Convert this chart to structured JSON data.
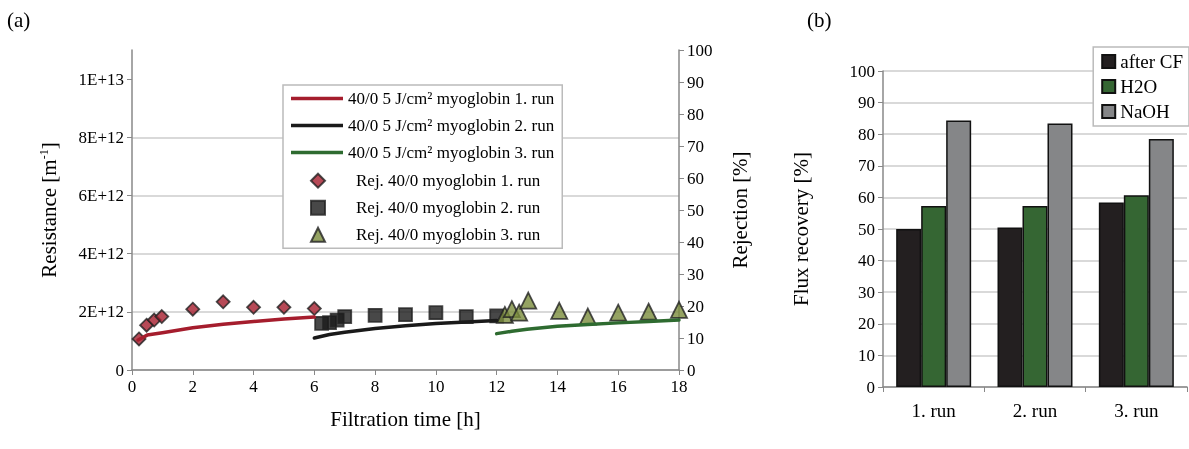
{
  "chart_data": [
    {
      "type": "line",
      "title": "(a)",
      "xlabel": "Filtration time [h]",
      "ylabel": "Resistance [m$^{-1}$]",
      "y2label": "Rejection [%]",
      "xlim": [
        0,
        18
      ],
      "xticks": [
        0,
        2,
        4,
        6,
        8,
        10,
        12,
        14,
        16,
        18
      ],
      "ylim": [
        0,
        11000000000000.0
      ],
      "yticks": [
        0,
        {
          "value": 2000000000000.0,
          "label": "2E+12"
        },
        {
          "value": 4000000000000.0,
          "label": "4E+12"
        },
        {
          "value": 6000000000000.0,
          "label": "6E+12"
        },
        {
          "value": 8000000000000.0,
          "label": "8E+12"
        },
        {
          "value": 10000000000000.0,
          "label": "1E+13"
        }
      ],
      "y2lim": [
        0,
        100
      ],
      "y2ticks": [
        0,
        10,
        20,
        30,
        40,
        50,
        60,
        70,
        80,
        90,
        100
      ],
      "grid": "y",
      "legend": "top right",
      "series": [
        {
          "name": "40/0 5 J/cm² myoglobin 1. run",
          "marker": "none",
          "color": "#a51d2d",
          "x": [
            0.2,
            0.5,
            1,
            2,
            3,
            4,
            5,
            6
          ],
          "values": [
            1030000000000.0,
            1200000000000.0,
            1280000000000.0,
            1450000000000.0,
            1570000000000.0,
            1670000000000.0,
            1750000000000.0,
            1820000000000.0
          ]
        },
        {
          "name": "40/0 5 J/cm² myoglobin 2. run",
          "marker": "none",
          "color": "#1a1a1a",
          "x": [
            6,
            6.5,
            7,
            8,
            9,
            10,
            11,
            12
          ],
          "values": [
            1100000000000.0,
            1220000000000.0,
            1300000000000.0,
            1430000000000.0,
            1520000000000.0,
            1600000000000.0,
            1650000000000.0,
            1700000000000.0
          ]
        },
        {
          "name": "40/0 5 J/cm² myoglobin 3. run",
          "marker": "none",
          "color": "#2e6b30",
          "x": [
            12,
            12.5,
            13,
            14,
            15,
            16,
            17,
            18
          ],
          "values": [
            1250000000000.0,
            1330000000000.0,
            1400000000000.0,
            1500000000000.0,
            1560000000000.0,
            1620000000000.0,
            1670000000000.0,
            1720000000000.0
          ]
        },
        {
          "name": "Rej. 40/0 myoglobin 1. run",
          "type": "scatter",
          "axis": "y2",
          "marker": "diamond",
          "color": "#a51d2d",
          "x": [
            0.23,
            0.48,
            0.73,
            0.98,
            2,
            3,
            4,
            5,
            6
          ],
          "values": [
            9.7,
            14,
            15.6,
            16.7,
            19,
            21.3,
            19.6,
            19.6,
            19.2
          ]
        },
        {
          "name": "Rej. 40/0 myoglobin 2. run",
          "type": "scatter",
          "axis": "y2",
          "marker": "square",
          "color": "#1a1a1a",
          "x": [
            6.24,
            6.5,
            6.75,
            7,
            8,
            9,
            10,
            11,
            12
          ],
          "values": [
            14.6,
            14.8,
            15.6,
            16.7,
            17.1,
            17.3,
            17.9,
            16.7,
            16.9
          ]
        },
        {
          "name": "Rej. 40/0 myoglobin 3. run",
          "type": "scatter",
          "axis": "y2",
          "marker": "triangle",
          "color": "#7a8c3c",
          "x": [
            12.27,
            12.5,
            12.74,
            13.04,
            14.06,
            15,
            16,
            17,
            18
          ],
          "values": [
            17.2,
            19,
            17.9,
            21.7,
            18.5,
            16.7,
            17.9,
            18.2,
            18.8
          ]
        }
      ]
    },
    {
      "type": "bar",
      "title": "(b)",
      "ylabel": "Flux recovery [%]",
      "categories": [
        "1. run",
        "2. run",
        "3. run"
      ],
      "ylim": [
        0,
        100
      ],
      "yticks": [
        0,
        10,
        20,
        30,
        40,
        50,
        60,
        70,
        80,
        90,
        100
      ],
      "grid": "y",
      "legend": "top right",
      "series": [
        {
          "name": "after CF",
          "color": "#231f20",
          "values": [
            50,
            50.5,
            58.4
          ]
        },
        {
          "name": "H2O",
          "color": "#356633",
          "values": [
            57.3,
            57.3,
            60.7
          ]
        },
        {
          "name": "NaOH",
          "color": "#858688",
          "values": [
            84.3,
            83.4,
            78.5
          ]
        }
      ]
    }
  ]
}
